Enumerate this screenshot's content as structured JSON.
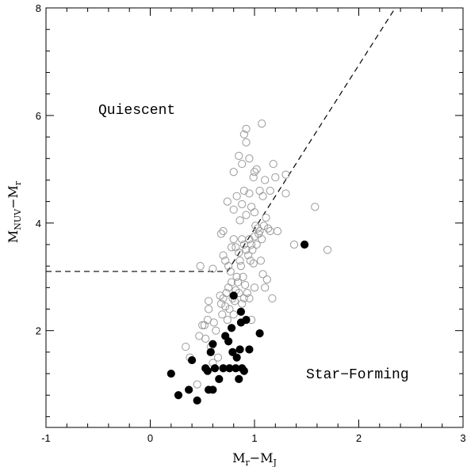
{
  "chart_data": {
    "type": "scatter",
    "title": "",
    "xlabel": {
      "main": "M",
      "sub1": "r",
      "mid": "−M",
      "sub2": "J"
    },
    "ylabel": {
      "main": "M",
      "sub1": "NUV",
      "mid": "−M",
      "sub2": "r"
    },
    "xlim": [
      -1,
      3
    ],
    "ylim": [
      0.2,
      8
    ],
    "x_ticks": [
      -1,
      0,
      1,
      2,
      3
    ],
    "y_ticks": [
      2,
      4,
      6,
      8
    ],
    "x_tick_labels": [
      "-1",
      "0",
      "1",
      "2",
      "3"
    ],
    "y_tick_labels": [
      "2",
      "4",
      "6",
      "8"
    ],
    "grid": false,
    "annotations": {
      "quiescent": "Quiescent",
      "star_forming": "Star−Forming"
    },
    "divider": {
      "flat_y": 3.1,
      "flat_x_start": -1.0,
      "break_x": 0.74,
      "end_x": 2.35,
      "end_y": 8.0
    },
    "colors": {
      "open_marker": "#9a9a9a",
      "filled_marker": "#000000",
      "divider": "#000000"
    },
    "series": [
      {
        "marker": "open",
        "points": [
          [
            0.34,
            1.7
          ],
          [
            0.38,
            1.5
          ],
          [
            0.45,
            1.0
          ],
          [
            0.47,
            1.9
          ],
          [
            0.5,
            2.1
          ],
          [
            0.52,
            2.1
          ],
          [
            0.55,
            2.2
          ],
          [
            0.56,
            2.4
          ],
          [
            0.56,
            2.55
          ],
          [
            0.53,
            1.85
          ],
          [
            0.58,
            1.7
          ],
          [
            0.6,
            1.4
          ],
          [
            0.61,
            2.15
          ],
          [
            0.63,
            2.0
          ],
          [
            0.65,
            1.5
          ],
          [
            0.67,
            2.65
          ],
          [
            0.68,
            2.5
          ],
          [
            0.69,
            2.3
          ],
          [
            0.7,
            2.6
          ],
          [
            0.72,
            2.45
          ],
          [
            0.73,
            2.7
          ],
          [
            0.74,
            2.2
          ],
          [
            0.75,
            2.8
          ],
          [
            0.76,
            2.4
          ],
          [
            0.77,
            3.1
          ],
          [
            0.78,
            2.9
          ],
          [
            0.79,
            2.6
          ],
          [
            0.8,
            2.3
          ],
          [
            0.81,
            2.55
          ],
          [
            0.82,
            2.75
          ],
          [
            0.83,
            3.0
          ],
          [
            0.84,
            2.9
          ],
          [
            0.85,
            2.7
          ],
          [
            0.86,
            3.3
          ],
          [
            0.87,
            3.2
          ],
          [
            0.88,
            2.5
          ],
          [
            0.89,
            3.0
          ],
          [
            0.9,
            2.6
          ],
          [
            0.91,
            2.85
          ],
          [
            0.93,
            2.7
          ],
          [
            0.94,
            3.4
          ],
          [
            0.95,
            2.6
          ],
          [
            0.96,
            3.3
          ],
          [
            0.97,
            2.2
          ],
          [
            0.98,
            3.5
          ],
          [
            0.99,
            3.25
          ],
          [
            1.0,
            2.8
          ],
          [
            1.02,
            3.6
          ],
          [
            1.04,
            3.8
          ],
          [
            1.06,
            3.3
          ],
          [
            1.08,
            3.05
          ],
          [
            1.1,
            2.8
          ],
          [
            1.12,
            2.95
          ],
          [
            1.15,
            3.85
          ],
          [
            1.17,
            2.6
          ],
          [
            0.48,
            3.2
          ],
          [
            0.6,
            3.15
          ],
          [
            0.7,
            3.4
          ],
          [
            0.72,
            3.3
          ],
          [
            0.75,
            3.2
          ],
          [
            0.78,
            3.55
          ],
          [
            0.8,
            3.7
          ],
          [
            0.82,
            3.55
          ],
          [
            0.85,
            3.45
          ],
          [
            0.88,
            3.7
          ],
          [
            0.9,
            3.6
          ],
          [
            0.92,
            3.5
          ],
          [
            0.95,
            3.7
          ],
          [
            0.97,
            3.6
          ],
          [
            1.0,
            3.75
          ],
          [
            1.01,
            3.95
          ],
          [
            1.03,
            3.9
          ],
          [
            1.05,
            3.85
          ],
          [
            1.07,
            3.7
          ],
          [
            1.09,
            3.95
          ],
          [
            1.11,
            4.1
          ],
          [
            1.13,
            3.9
          ],
          [
            0.68,
            3.8
          ],
          [
            0.7,
            3.85
          ],
          [
            0.74,
            4.4
          ],
          [
            0.8,
            4.25
          ],
          [
            0.83,
            4.5
          ],
          [
            0.86,
            4.05
          ],
          [
            0.88,
            4.35
          ],
          [
            0.9,
            4.6
          ],
          [
            0.92,
            4.15
          ],
          [
            0.95,
            4.55
          ],
          [
            0.97,
            4.3
          ],
          [
            0.99,
            4.85
          ],
          [
            1.0,
            4.2
          ],
          [
            1.02,
            5.0
          ],
          [
            1.05,
            4.6
          ],
          [
            1.08,
            4.5
          ],
          [
            1.1,
            4.8
          ],
          [
            1.15,
            4.6
          ],
          [
            1.2,
            4.85
          ],
          [
            1.3,
            4.9
          ],
          [
            1.3,
            4.55
          ],
          [
            0.8,
            4.95
          ],
          [
            0.85,
            5.25
          ],
          [
            0.88,
            5.1
          ],
          [
            0.92,
            5.5
          ],
          [
            0.95,
            5.2
          ],
          [
            1.0,
            4.95
          ],
          [
            1.07,
            5.85
          ],
          [
            1.18,
            5.1
          ],
          [
            0.92,
            5.75
          ],
          [
            0.9,
            5.65
          ],
          [
            1.22,
            3.85
          ],
          [
            1.38,
            3.6
          ],
          [
            1.58,
            4.3
          ],
          [
            1.7,
            3.5
          ]
        ]
      },
      {
        "marker": "filled",
        "points": [
          [
            0.2,
            1.2
          ],
          [
            0.27,
            0.8
          ],
          [
            0.37,
            0.9
          ],
          [
            0.4,
            1.45
          ],
          [
            0.45,
            0.7
          ],
          [
            0.53,
            1.3
          ],
          [
            0.55,
            1.25
          ],
          [
            0.56,
            0.9
          ],
          [
            0.58,
            1.6
          ],
          [
            0.6,
            1.75
          ],
          [
            0.6,
            0.9
          ],
          [
            0.62,
            1.3
          ],
          [
            0.66,
            1.1
          ],
          [
            0.7,
            1.3
          ],
          [
            0.72,
            1.9
          ],
          [
            0.75,
            1.8
          ],
          [
            0.76,
            1.3
          ],
          [
            0.78,
            2.05
          ],
          [
            0.79,
            1.6
          ],
          [
            0.8,
            2.65
          ],
          [
            0.82,
            1.3
          ],
          [
            0.83,
            1.5
          ],
          [
            0.85,
            1.1
          ],
          [
            0.86,
            1.65
          ],
          [
            0.87,
            2.15
          ],
          [
            0.87,
            2.35
          ],
          [
            0.88,
            1.3
          ],
          [
            0.9,
            1.25
          ],
          [
            0.92,
            2.2
          ],
          [
            0.95,
            1.65
          ],
          [
            1.05,
            1.95
          ],
          [
            1.48,
            3.6
          ]
        ]
      }
    ]
  }
}
